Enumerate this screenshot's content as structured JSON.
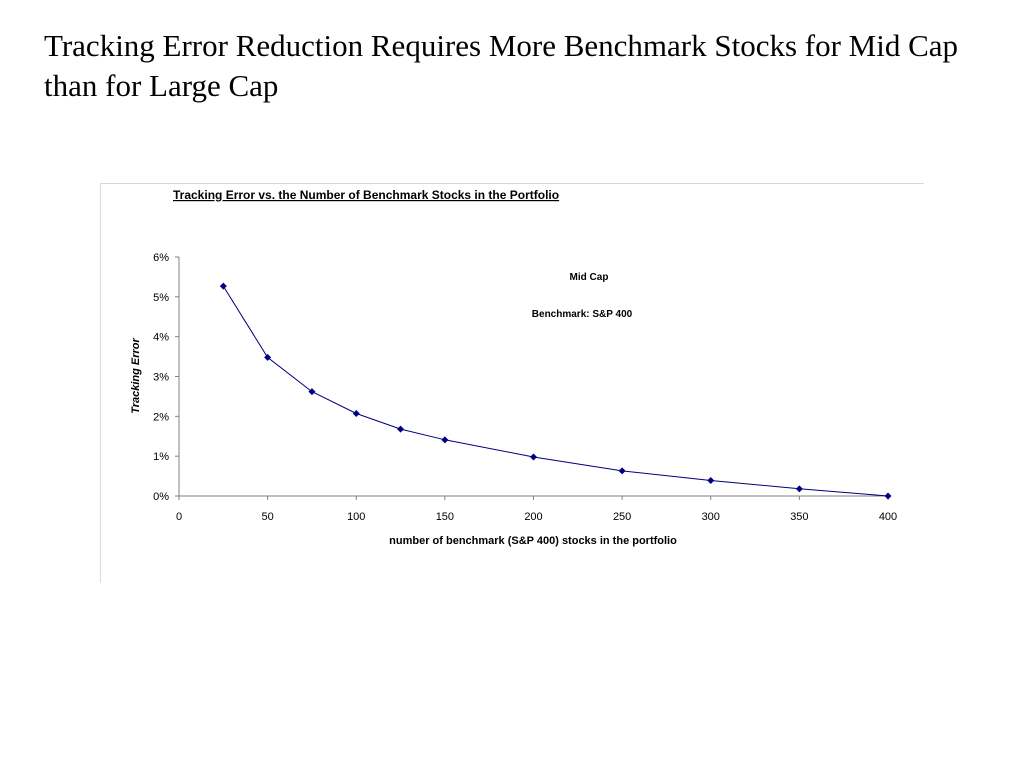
{
  "slide": {
    "title": "Tracking Error Reduction Requires More Benchmark Stocks for Mid Cap than for Large Cap"
  },
  "chart_data": {
    "type": "line",
    "title": "Tracking Error vs. the Number of Benchmark Stocks in the Portfolio",
    "xlabel": "number of benchmark (S&P 400) stocks in the portfolio",
    "ylabel": "Tracking Error",
    "xlim": [
      0,
      400
    ],
    "ylim": [
      0,
      0.06
    ],
    "x_ticks": [
      0,
      50,
      100,
      150,
      200,
      250,
      300,
      350,
      400
    ],
    "x_tick_labels": [
      "0",
      "50",
      "100",
      "150",
      "200",
      "250",
      "300",
      "350",
      "400"
    ],
    "y_ticks": [
      0,
      0.01,
      0.02,
      0.03,
      0.04,
      0.05,
      0.06
    ],
    "y_tick_labels": [
      "0%",
      "1%",
      "2%",
      "3%",
      "4%",
      "5%",
      "6%"
    ],
    "grid": false,
    "legend": "none",
    "annotations": [
      "Mid Cap",
      "Benchmark: S&P 400"
    ],
    "series": [
      {
        "color": "#000080",
        "marker": "diamond",
        "x": [
          25,
          50,
          75,
          100,
          125,
          150,
          200,
          250,
          300,
          350,
          400
        ],
        "y": [
          0.0527,
          0.0348,
          0.0262,
          0.0207,
          0.0168,
          0.0141,
          0.0098,
          0.0063,
          0.0039,
          0.0018,
          0.0
        ]
      }
    ]
  }
}
